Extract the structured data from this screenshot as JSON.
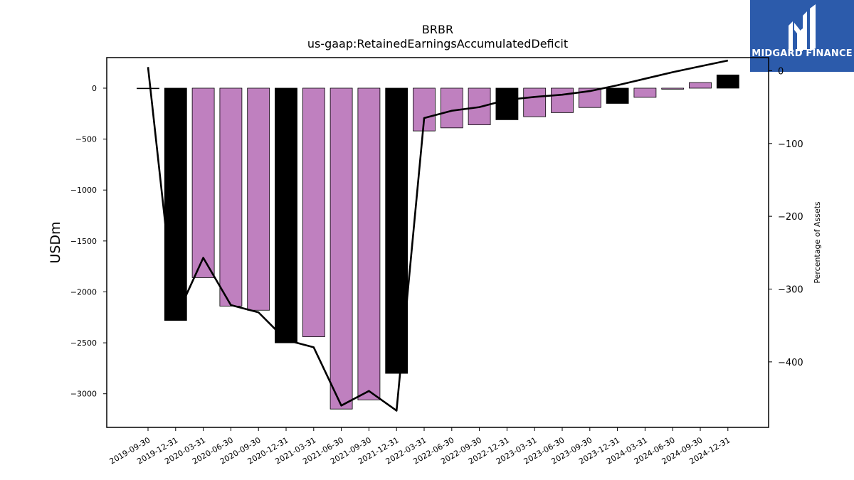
{
  "header": {
    "ticker": "BRBR",
    "concept": "us-gaap:RetainedEarningsAccumulatedDeficit"
  },
  "logo": {
    "name": "MIDGARD FINANCE",
    "bg_color": "#2c5bab"
  },
  "chart_data": {
    "type": "bar",
    "title": "BRBR",
    "subtitle": "us-gaap:RetainedEarningsAccumulatedDeficit",
    "ylabel": "USDm",
    "y2label": "Percentage of Assets",
    "categories": [
      "2019-09-30",
      "2019-12-31",
      "2020-03-31",
      "2020-06-30",
      "2020-09-30",
      "2020-12-31",
      "2021-03-31",
      "2021-06-30",
      "2021-09-30",
      "2021-12-31",
      "2022-03-31",
      "2022-06-30",
      "2022-09-30",
      "2022-12-31",
      "2023-03-31",
      "2023-06-30",
      "2023-09-30",
      "2023-12-31",
      "2024-03-31",
      "2024-06-30",
      "2024-09-30",
      "2024-12-31"
    ],
    "values": [
      0,
      -2280,
      -1860,
      -2140,
      -2180,
      -2500,
      -2440,
      -3150,
      -3060,
      -2800,
      -420,
      -390,
      -360,
      -310,
      -280,
      -240,
      -190,
      -150,
      -90,
      -10,
      55,
      130
    ],
    "bar_kind": [
      "q3",
      "q4",
      "q",
      "q",
      "q3",
      "q4",
      "q",
      "q",
      "q3",
      "q4",
      "q",
      "q",
      "q3",
      "q4",
      "q",
      "q",
      "q3",
      "q4",
      "q",
      "q",
      "q3",
      "q4"
    ],
    "line_series": {
      "name": "Percentage of Assets",
      "values": [
        5,
        -340,
        -257,
        -322,
        -332,
        -370,
        -380,
        -460,
        -440,
        -467,
        -65,
        -55,
        -50,
        -40,
        -36,
        -33,
        -28,
        -20,
        -11,
        -2,
        6,
        14
      ]
    },
    "ylim": [
      -3330,
      300
    ],
    "y2lim": [
      -490,
      18
    ],
    "yticks": [
      0,
      -500,
      -1000,
      -1500,
      -2000,
      -2500,
      -3000
    ],
    "ytick_labels": [
      "0",
      "−500",
      "−1000",
      "−1500",
      "−2000",
      "−2500",
      "−3000"
    ],
    "y2ticks": [
      0,
      -100,
      -200,
      -300,
      -400
    ],
    "y2tick_labels": [
      "0",
      "−100",
      "−200",
      "−300",
      "−400"
    ],
    "colors": {
      "q": "#bf80bf",
      "q3": "#bf80bf",
      "q4": "#000000",
      "line": "#000000"
    },
    "grid": false
  }
}
